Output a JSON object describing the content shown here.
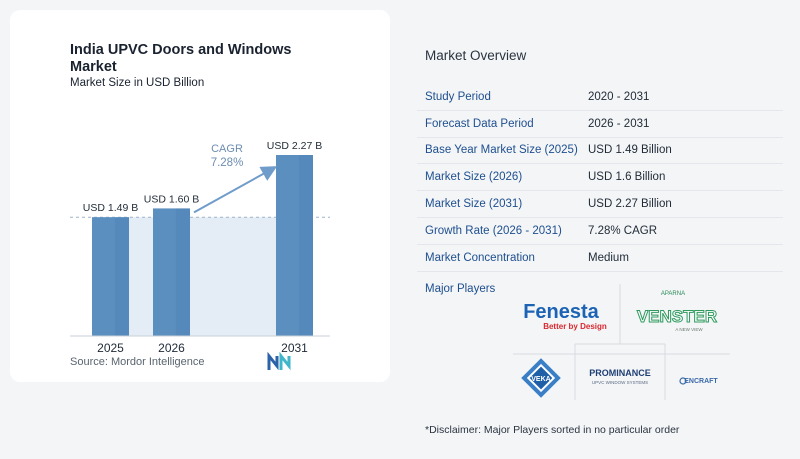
{
  "chart": {
    "title": "India UPVC Doors and Windows Market",
    "subtitle": "Market Size in USD Billion",
    "source": "Source:  Mordor Intelligence",
    "cagr_label": "CAGR",
    "cagr_value": "7.28%"
  },
  "chart_data": {
    "type": "bar",
    "categories": [
      "2025",
      "2026",
      "2031"
    ],
    "values": [
      1.49,
      1.6,
      2.27
    ],
    "data_labels": [
      "USD 1.49 B",
      "USD 1.60 B",
      "USD 2.27 B"
    ],
    "title": "India UPVC Doors and Windows Market",
    "subtitle": "Market Size in USD Billion",
    "xlabel": "",
    "ylabel": "",
    "ylim": [
      0,
      2.27
    ],
    "grid": false,
    "annotation": "CAGR 7.28%",
    "colors": {
      "bar": "#5b8fc0",
      "bar_dark": "#4a7fb2",
      "reference_line": "#9fb4cc",
      "shade": "#e4ecf5",
      "arrow": "#6f9ccb",
      "cagr_text": "#6d8db0"
    }
  },
  "overview": {
    "title": "Market Overview",
    "rows": [
      {
        "label": "Study Period",
        "value": "2020 - 2031"
      },
      {
        "label": "Forecast Data Period",
        "value": "2026 - 2031"
      },
      {
        "label": "Base Year Market Size (2025)",
        "value": "USD 1.49 Billion"
      },
      {
        "label": "Market Size (2026)",
        "value": "USD 1.6 Billion"
      },
      {
        "label": "Market Size (2031)",
        "value": "USD 2.27 Billion"
      },
      {
        "label": "Growth Rate (2026 - 2031)",
        "value": "7.28% CAGR"
      },
      {
        "label": "Market Concentration",
        "value": "Medium"
      }
    ],
    "players_title": "Major Players",
    "players": {
      "fenesta": {
        "name": "Fenesta",
        "tagline": "Better by Design"
      },
      "venster": {
        "brand": "APARNA",
        "name": "VENSTER",
        "tagline": "A NEW VIEW"
      },
      "veka": {
        "name": "VEKA"
      },
      "prominance": {
        "name": "PROMINANCE",
        "tagline": "UPVC WINDOW SYSTEMS"
      },
      "encraft": {
        "name": "ENCRAFT"
      }
    },
    "disclaimer": "*Disclaimer: Major Players sorted in no particular order"
  }
}
